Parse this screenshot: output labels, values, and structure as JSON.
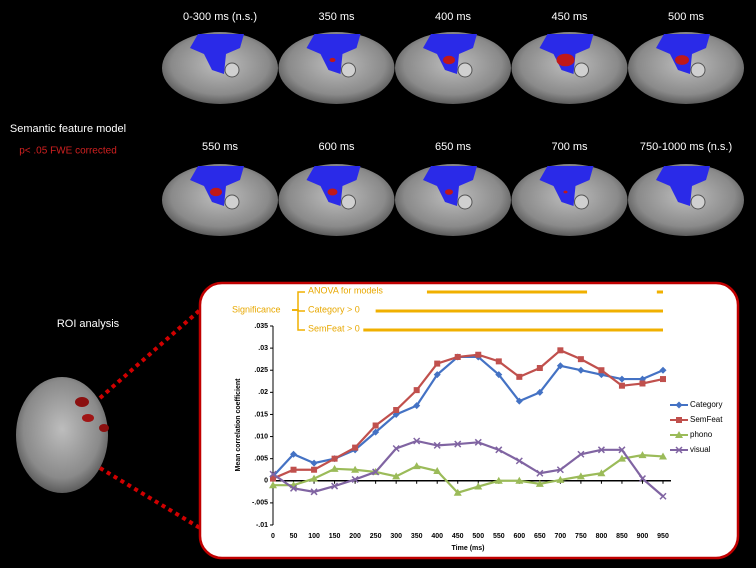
{
  "brain_panels": [
    "0-300 ms (n.s.)",
    "350 ms",
    "400 ms",
    "450 ms",
    "500 ms",
    "550 ms",
    "600 ms",
    "650 ms",
    "700 ms",
    "750-1000 ms (n.s.)"
  ],
  "left_labels": {
    "model": "Semantic feature model",
    "threshold": "p< .05 FWE corrected",
    "roi": "ROI analysis"
  },
  "chart_data": {
    "type": "line",
    "ylabel": "Mean correlation coefficient",
    "xlabel": "Time (ms)",
    "x": [
      0,
      50,
      100,
      150,
      200,
      250,
      300,
      350,
      400,
      450,
      500,
      550,
      600,
      650,
      700,
      750,
      800,
      850,
      900,
      950
    ],
    "xlim": [
      0,
      950
    ],
    "xticks": [
      0,
      50,
      100,
      150,
      200,
      250,
      300,
      350,
      400,
      450,
      500,
      550,
      600,
      650,
      700,
      750,
      800,
      850,
      900,
      950
    ],
    "ylim": [
      -0.01,
      0.035
    ],
    "yticks": [
      {
        "value": -0.01,
        "label": "-.01"
      },
      {
        "value": -0.005,
        "label": "-.005"
      },
      0,
      {
        "value": 0.005,
        "label": ".005"
      },
      {
        "value": 0.01,
        "label": ".010"
      },
      {
        "value": 0.015,
        "label": ".015"
      },
      {
        "value": 0.02,
        "label": ".02"
      },
      {
        "value": 0.025,
        "label": ".025"
      },
      {
        "value": 0.03,
        "label": ".03"
      },
      {
        "value": 0.035,
        "label": ".035"
      }
    ],
    "legend": "right",
    "series": [
      {
        "name": "Category",
        "color": "#4472c4",
        "marker": "diamond",
        "values": [
          0.001,
          0.006,
          0.004,
          0.005,
          0.007,
          0.011,
          0.015,
          0.017,
          0.024,
          0.028,
          0.028,
          0.024,
          0.018,
          0.02,
          0.026,
          0.025,
          0.024,
          0.023,
          0.023,
          0.025
        ]
      },
      {
        "name": "SemFeat",
        "color": "#c0504d",
        "marker": "square",
        "values": [
          0.0005,
          0.0025,
          0.0025,
          0.005,
          0.0075,
          0.0125,
          0.016,
          0.0205,
          0.0265,
          0.028,
          0.0285,
          0.027,
          0.0235,
          0.0255,
          0.0295,
          0.0275,
          0.025,
          0.0215,
          0.022,
          0.023
        ]
      },
      {
        "name": "phono",
        "color": "#9bbb59",
        "marker": "triangle",
        "values": [
          -0.001,
          -0.001,
          0.0005,
          0.0027,
          0.0025,
          0.002,
          0.001,
          0.0033,
          0.0022,
          -0.0027,
          -0.0013,
          0,
          0,
          -0.0007,
          0.0002,
          0.001,
          0.0017,
          0.005,
          0.0058,
          0.0055
        ]
      },
      {
        "name": "visual",
        "color": "#8064a2",
        "marker": "x",
        "values": [
          0.0015,
          -0.0017,
          -0.0025,
          -0.0012,
          0.0003,
          0.002,
          0.0073,
          0.009,
          0.008,
          0.0083,
          0.0087,
          0.007,
          0.0045,
          0.0017,
          0.0025,
          0.006,
          0.007,
          0.007,
          0.0005,
          -0.0035
        ]
      }
    ],
    "significance_label": "Significance",
    "significance": [
      {
        "name": "ANOVA for models",
        "intervals": [
          [
            375,
            765
          ],
          [
            935,
            950
          ]
        ]
      },
      {
        "name": "Category > 0",
        "intervals": [
          [
            250,
            950
          ]
        ]
      },
      {
        "name": "SemFeat > 0",
        "intervals": [
          [
            220,
            950
          ]
        ]
      }
    ],
    "significance_color": "#f0b000"
  }
}
